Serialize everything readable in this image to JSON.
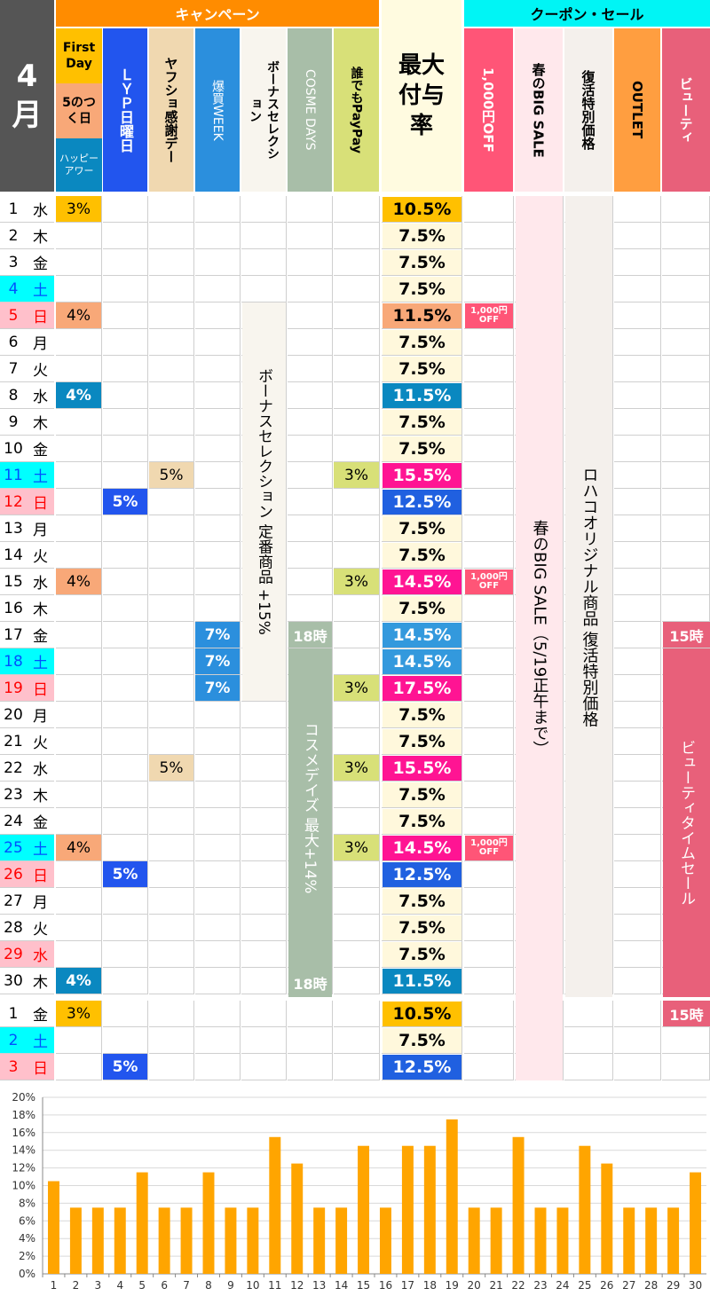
{
  "month_label": "4",
  "month_kanji": "月",
  "groups": {
    "campaign": "キャンペーン",
    "coupon": "クーポン・セール"
  },
  "columns": {
    "first_day": "First Day",
    "five_day": "5のつく日",
    "happy_hour": "ハッピーアワー",
    "lyp": "ＬＹＰ日曜日",
    "yafusho": "ヤフショ感謝デー",
    "bakugai": "爆買WEEK",
    "bonus": "ボーナスセレクション",
    "cosme": "COSME DAYS",
    "daredemo": "誰でもPayPay",
    "max_rate": "最大付与率",
    "coupon1000": "1,000円OFF",
    "spring_sale": "春のBIG SALE",
    "revival": "復活特別価格",
    "outlet": "OUTLET",
    "beauty": "ビューティ"
  },
  "colors": {
    "orange_header": "#ff8c00",
    "cyan_header": "#00f5f5",
    "gold": "#ffc000",
    "salmon": "#f8a878",
    "teal": "#0a88c0",
    "yellow_light": "#fff8dc",
    "pink": "#ff1493",
    "blue": "#2060e0",
    "sky": "#3399dd",
    "bar": "#ffa500"
  },
  "rows": [
    {
      "day": "1",
      "dow": "水",
      "dow_type": "weekday",
      "camp": "3%",
      "camp_color": "gold",
      "lyp": "",
      "yafu": "",
      "baku": "",
      "dare": "",
      "rate": "10.5%",
      "rate_color": "gold",
      "coupon": false,
      "section": "april"
    },
    {
      "day": "2",
      "dow": "木",
      "dow_type": "weekday",
      "camp": "",
      "lyp": "",
      "yafu": "",
      "baku": "",
      "dare": "",
      "rate": "7.5%",
      "rate_color": "plain",
      "coupon": false,
      "section": "april"
    },
    {
      "day": "3",
      "dow": "金",
      "dow_type": "weekday",
      "camp": "",
      "lyp": "",
      "yafu": "",
      "baku": "",
      "dare": "",
      "rate": "7.5%",
      "rate_color": "plain",
      "coupon": false,
      "section": "april"
    },
    {
      "day": "4",
      "dow": "土",
      "dow_type": "sat",
      "camp": "",
      "lyp": "",
      "yafu": "",
      "baku": "",
      "dare": "",
      "rate": "7.5%",
      "rate_color": "plain",
      "coupon": false,
      "section": "april"
    },
    {
      "day": "5",
      "dow": "日",
      "dow_type": "sun",
      "camp": "4%",
      "camp_color": "salmon",
      "lyp": "",
      "yafu": "",
      "baku": "",
      "dare": "",
      "rate": "11.5%",
      "rate_color": "salmon",
      "coupon": true,
      "section": "april"
    },
    {
      "day": "6",
      "dow": "月",
      "dow_type": "weekday",
      "camp": "",
      "lyp": "",
      "yafu": "",
      "baku": "",
      "dare": "",
      "rate": "7.5%",
      "rate_color": "plain",
      "coupon": false,
      "section": "april"
    },
    {
      "day": "7",
      "dow": "火",
      "dow_type": "weekday",
      "camp": "",
      "lyp": "",
      "yafu": "",
      "baku": "",
      "dare": "",
      "rate": "7.5%",
      "rate_color": "plain",
      "coupon": false,
      "section": "april"
    },
    {
      "day": "8",
      "dow": "水",
      "dow_type": "weekday",
      "camp": "4%",
      "camp_color": "teal",
      "lyp": "",
      "yafu": "",
      "baku": "",
      "dare": "",
      "rate": "11.5%",
      "rate_color": "teal",
      "coupon": false,
      "section": "april"
    },
    {
      "day": "9",
      "dow": "木",
      "dow_type": "weekday",
      "camp": "",
      "lyp": "",
      "yafu": "",
      "baku": "",
      "dare": "",
      "rate": "7.5%",
      "rate_color": "plain",
      "coupon": false,
      "section": "april"
    },
    {
      "day": "10",
      "dow": "金",
      "dow_type": "weekday",
      "camp": "",
      "lyp": "",
      "yafu": "",
      "baku": "",
      "dare": "",
      "rate": "7.5%",
      "rate_color": "plain",
      "coupon": false,
      "section": "april"
    },
    {
      "day": "11",
      "dow": "土",
      "dow_type": "sat",
      "camp": "",
      "lyp": "",
      "yafu": "5%",
      "baku": "",
      "dare": "3%",
      "rate": "15.5%",
      "rate_color": "pink",
      "coupon": false,
      "section": "april"
    },
    {
      "day": "12",
      "dow": "日",
      "dow_type": "sun",
      "camp": "",
      "lyp": "5%",
      "yafu": "",
      "baku": "",
      "dare": "",
      "rate": "12.5%",
      "rate_color": "blue",
      "coupon": false,
      "section": "april"
    },
    {
      "day": "13",
      "dow": "月",
      "dow_type": "weekday",
      "camp": "",
      "lyp": "",
      "yafu": "",
      "baku": "",
      "dare": "",
      "rate": "7.5%",
      "rate_color": "plain",
      "coupon": false,
      "section": "april"
    },
    {
      "day": "14",
      "dow": "火",
      "dow_type": "weekday",
      "camp": "",
      "lyp": "",
      "yafu": "",
      "baku": "",
      "dare": "",
      "rate": "7.5%",
      "rate_color": "plain",
      "coupon": false,
      "section": "april"
    },
    {
      "day": "15",
      "dow": "水",
      "dow_type": "weekday",
      "camp": "4%",
      "camp_color": "salmon",
      "lyp": "",
      "yafu": "",
      "baku": "",
      "dare": "3%",
      "rate": "14.5%",
      "rate_color": "pink",
      "coupon": true,
      "section": "april"
    },
    {
      "day": "16",
      "dow": "木",
      "dow_type": "weekday",
      "camp": "",
      "lyp": "",
      "yafu": "",
      "baku": "",
      "dare": "",
      "rate": "7.5%",
      "rate_color": "plain",
      "coupon": false,
      "section": "april"
    },
    {
      "day": "17",
      "dow": "金",
      "dow_type": "weekday",
      "camp": "",
      "lyp": "",
      "yafu": "",
      "baku": "7%",
      "dare": "",
      "rate": "14.5%",
      "rate_color": "sky",
      "coupon": false,
      "section": "april"
    },
    {
      "day": "18",
      "dow": "土",
      "dow_type": "sat",
      "camp": "",
      "lyp": "",
      "yafu": "",
      "baku": "7%",
      "dare": "",
      "rate": "14.5%",
      "rate_color": "sky",
      "coupon": false,
      "section": "april"
    },
    {
      "day": "19",
      "dow": "日",
      "dow_type": "sun",
      "camp": "",
      "lyp": "",
      "yafu": "",
      "baku": "7%",
      "dare": "3%",
      "rate": "17.5%",
      "rate_color": "pink",
      "coupon": false,
      "section": "april"
    },
    {
      "day": "20",
      "dow": "月",
      "dow_type": "weekday",
      "camp": "",
      "lyp": "",
      "yafu": "",
      "baku": "",
      "dare": "",
      "rate": "7.5%",
      "rate_color": "plain",
      "coupon": false,
      "section": "april"
    },
    {
      "day": "21",
      "dow": "火",
      "dow_type": "weekday",
      "camp": "",
      "lyp": "",
      "yafu": "",
      "baku": "",
      "dare": "",
      "rate": "7.5%",
      "rate_color": "plain",
      "coupon": false,
      "section": "april"
    },
    {
      "day": "22",
      "dow": "水",
      "dow_type": "weekday",
      "camp": "",
      "lyp": "",
      "yafu": "5%",
      "baku": "",
      "dare": "3%",
      "rate": "15.5%",
      "rate_color": "pink",
      "coupon": false,
      "section": "april"
    },
    {
      "day": "23",
      "dow": "木",
      "dow_type": "weekday",
      "camp": "",
      "lyp": "",
      "yafu": "",
      "baku": "",
      "dare": "",
      "rate": "7.5%",
      "rate_color": "plain",
      "coupon": false,
      "section": "april"
    },
    {
      "day": "24",
      "dow": "金",
      "dow_type": "weekday",
      "camp": "",
      "lyp": "",
      "yafu": "",
      "baku": "",
      "dare": "",
      "rate": "7.5%",
      "rate_color": "plain",
      "coupon": false,
      "section": "april"
    },
    {
      "day": "25",
      "dow": "土",
      "dow_type": "sat",
      "camp": "4%",
      "camp_color": "salmon",
      "lyp": "",
      "yafu": "",
      "baku": "",
      "dare": "3%",
      "rate": "14.5%",
      "rate_color": "pink",
      "coupon": true,
      "section": "april"
    },
    {
      "day": "26",
      "dow": "日",
      "dow_type": "sun",
      "camp": "",
      "lyp": "5%",
      "yafu": "",
      "baku": "",
      "dare": "",
      "rate": "12.5%",
      "rate_color": "blue",
      "coupon": false,
      "section": "april"
    },
    {
      "day": "27",
      "dow": "月",
      "dow_type": "weekday",
      "camp": "",
      "lyp": "",
      "yafu": "",
      "baku": "",
      "dare": "",
      "rate": "7.5%",
      "rate_color": "plain",
      "coupon": false,
      "section": "april"
    },
    {
      "day": "28",
      "dow": "火",
      "dow_type": "weekday",
      "camp": "",
      "lyp": "",
      "yafu": "",
      "baku": "",
      "dare": "",
      "rate": "7.5%",
      "rate_color": "plain",
      "coupon": false,
      "section": "april"
    },
    {
      "day": "29",
      "dow": "水",
      "dow_type": "holiday",
      "camp": "",
      "lyp": "",
      "yafu": "",
      "baku": "",
      "dare": "",
      "rate": "7.5%",
      "rate_color": "plain",
      "coupon": false,
      "section": "april"
    },
    {
      "day": "30",
      "dow": "木",
      "dow_type": "weekday",
      "camp": "4%",
      "camp_color": "teal",
      "lyp": "",
      "yafu": "",
      "baku": "",
      "dare": "",
      "rate": "11.5%",
      "rate_color": "teal",
      "coupon": false,
      "section": "april"
    },
    {
      "day": "1",
      "dow": "金",
      "dow_type": "weekday",
      "camp": "3%",
      "camp_color": "gold",
      "lyp": "",
      "yafu": "",
      "baku": "",
      "dare": "",
      "rate": "10.5%",
      "rate_color": "gold",
      "coupon": false,
      "section": "may"
    },
    {
      "day": "2",
      "dow": "土",
      "dow_type": "sat",
      "camp": "",
      "lyp": "",
      "yafu": "",
      "baku": "",
      "dare": "",
      "rate": "7.5%",
      "rate_color": "plain",
      "coupon": false,
      "section": "may"
    },
    {
      "day": "3",
      "dow": "日",
      "dow_type": "sun",
      "camp": "",
      "lyp": "5%",
      "yafu": "",
      "baku": "",
      "dare": "",
      "rate": "12.5%",
      "rate_color": "blue",
      "coupon": false,
      "section": "may"
    }
  ],
  "coupon_text": {
    "line1": "1,000円",
    "line2": "OFF"
  },
  "bands": {
    "bonus": "ボーナスセレクション 定番商品 +15%",
    "cosme": "コスメデイズ 最大+14%",
    "cosme_start": "18時",
    "cosme_end": "18時",
    "spring": "春のBIG SALE（5/19正午まで）",
    "revival": "ロハコオリジナル商品 復活特別価格",
    "beauty": "ビューティタイムセール",
    "beauty_start": "15時",
    "beauty_may": "15時"
  },
  "chart_data": {
    "type": "bar",
    "categories": [
      "1",
      "2",
      "3",
      "4",
      "5",
      "6",
      "7",
      "8",
      "9",
      "10",
      "11",
      "12",
      "13",
      "14",
      "15",
      "16",
      "17",
      "18",
      "19",
      "20",
      "21",
      "22",
      "23",
      "24",
      "25",
      "26",
      "27",
      "28",
      "29",
      "30"
    ],
    "values": [
      10.5,
      7.5,
      7.5,
      7.5,
      11.5,
      7.5,
      7.5,
      11.5,
      7.5,
      7.5,
      15.5,
      12.5,
      7.5,
      7.5,
      14.5,
      7.5,
      14.5,
      14.5,
      17.5,
      7.5,
      7.5,
      15.5,
      7.5,
      7.5,
      14.5,
      12.5,
      7.5,
      7.5,
      7.5,
      11.5
    ],
    "ylim": [
      0,
      20
    ],
    "yticks": [
      "0%",
      "2%",
      "4%",
      "6%",
      "8%",
      "10%",
      "12%",
      "14%",
      "16%",
      "18%",
      "20%"
    ],
    "grid": true,
    "bar_color": "#ffa500"
  }
}
